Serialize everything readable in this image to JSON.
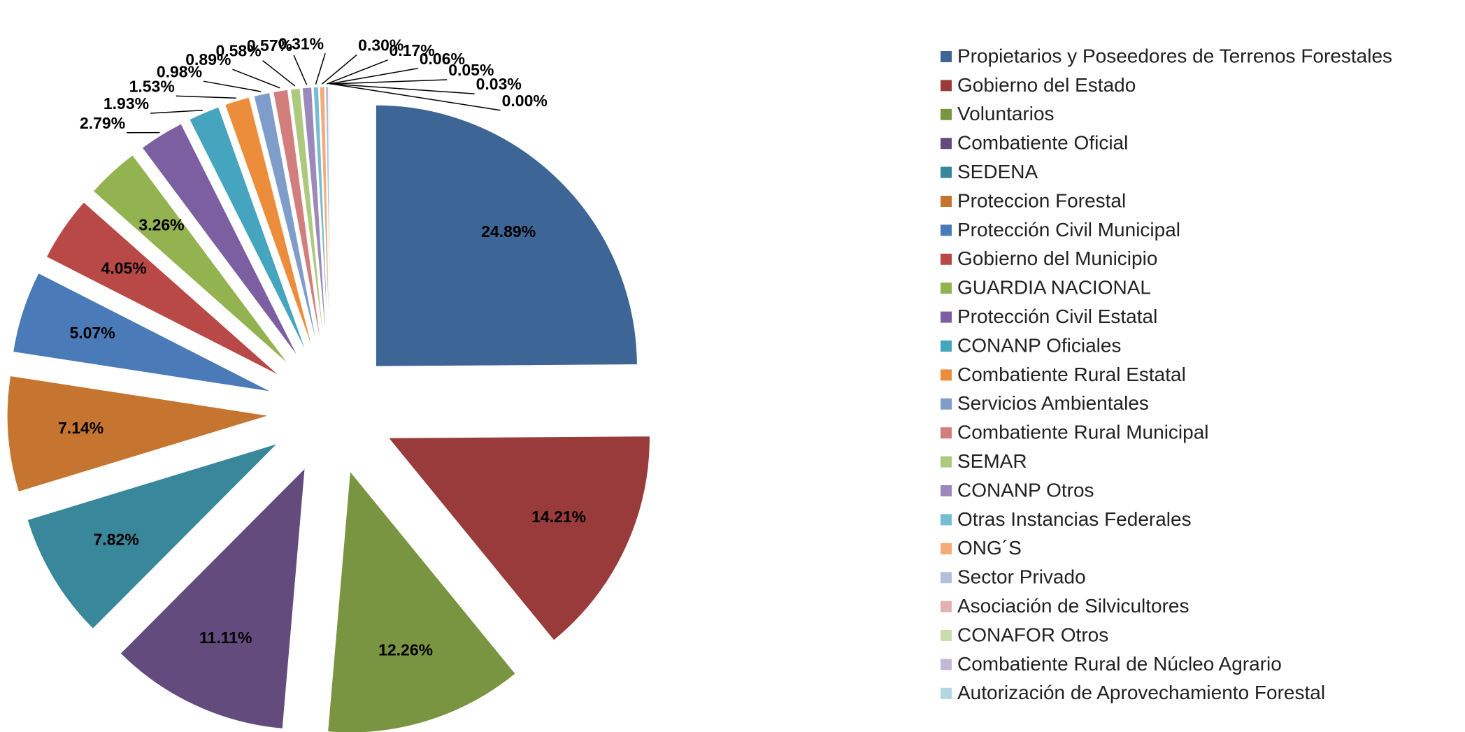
{
  "chart_data": {
    "type": "pie",
    "categories": [
      "Propietarios y Poseedores de Terrenos Forestales",
      "Gobierno del Estado",
      "Voluntarios",
      "Combatiente Oficial",
      "SEDENA",
      "Proteccion Forestal",
      "Protección Civil Municipal",
      "Gobierno del Municipio",
      "GUARDIA NACIONAL",
      "Protección Civil Estatal",
      "CONANP Oficiales",
      "Combatiente Rural Estatal",
      "Servicios Ambientales",
      "Combatiente Rural Municipal",
      "SEMAR",
      "CONANP Otros",
      "Otras Instancias Federales",
      "ONG´S",
      "Sector Privado",
      "Asociación de Silvicultores",
      "CONAFOR Otros",
      "Combatiente Rural de Núcleo Agrario",
      "Autorización de Aprovechamiento Forestal"
    ],
    "values": [
      24.89,
      14.21,
      12.26,
      11.11,
      7.82,
      7.14,
      5.07,
      4.05,
      3.26,
      2.79,
      1.93,
      1.53,
      0.98,
      0.89,
      0.58,
      0.57,
      0.31,
      0.3,
      0.17,
      0.06,
      0.05,
      0.03,
      0.0
    ],
    "value_labels": [
      "24.89%",
      "14.21%",
      "12.26%",
      "11.11%",
      "7.82%",
      "7.14%",
      "5.07%",
      "4.05%",
      "3.26%",
      "2.79%",
      "1.93%",
      "1.53%",
      "0.98%",
      "0.89%",
      "0.58%",
      "0.57%",
      "0.31%",
      "0.30%",
      "0.17%",
      "0.06%",
      "0.05%",
      "0.03%",
      "0.00%"
    ],
    "colors": [
      "#3d6696",
      "#983b3a",
      "#7a9541",
      "#634c7d",
      "#39879a",
      "#c57530",
      "#4a7bb8",
      "#b84947",
      "#93b250",
      "#7c5fa0",
      "#45a5bf",
      "#ec8d3c",
      "#7f9dcb",
      "#d27e7d",
      "#adc97e",
      "#9d88bc",
      "#75bdd2",
      "#f5aa78",
      "#b1c0dd",
      "#e1b1b0",
      "#cadcae",
      "#c2b7d4",
      "#b2d6e3"
    ],
    "legend": "right"
  }
}
